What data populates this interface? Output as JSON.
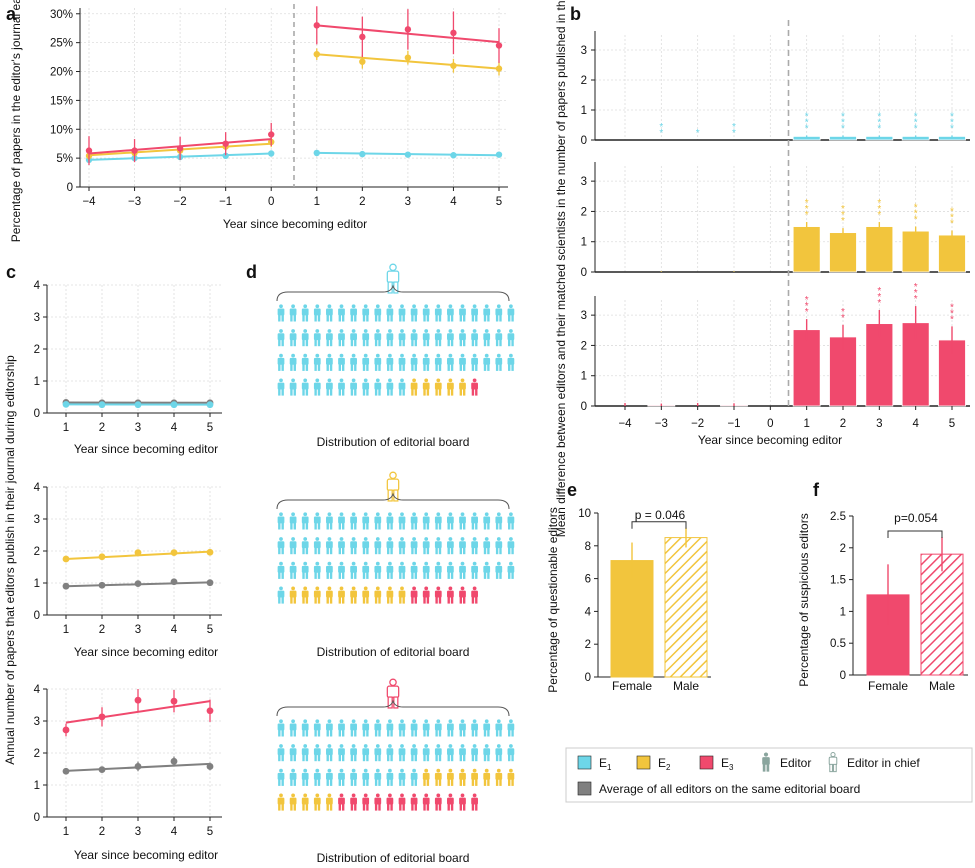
{
  "colors": {
    "E1": "#6dd6e8",
    "E2": "#f2c53d",
    "E3": "#f0496d",
    "avg": "#808080",
    "editor_icon": "#8aa59e"
  },
  "panel_labels": {
    "a": "a",
    "b": "b",
    "c": "c",
    "d": "d",
    "e": "e",
    "f": "f"
  },
  "chart_data": [
    {
      "id": "a",
      "type": "line",
      "ylabel": "Percentage of papers in the editor's journal each year",
      "xlabel": "Year since becoming editor",
      "x": [
        -4,
        -3,
        -2,
        -1,
        0,
        1,
        2,
        3,
        4,
        5
      ],
      "x_tick_labels": [
        "−4",
        "−3",
        "−2",
        "−1",
        "0",
        "1",
        "2",
        "3",
        "4",
        "5"
      ],
      "ylim": [
        0,
        31
      ],
      "y_ticks": [
        0,
        5,
        10,
        15,
        20,
        25,
        30
      ],
      "y_tick_labels": [
        "0",
        "5%",
        "10%",
        "15%",
        "20%",
        "25%",
        "30%"
      ],
      "series": [
        {
          "name": "E1",
          "values": [
            4.7,
            5.0,
            5.2,
            5.4,
            5.8,
            5.9,
            5.7,
            5.6,
            5.5,
            5.6
          ],
          "err": [
            0.4,
            0.4,
            0.4,
            0.4,
            0.4,
            0.4,
            0.4,
            0.4,
            0.4,
            0.4
          ],
          "fit_pre": [
            4.7,
            5.8
          ],
          "fit_post": [
            5.9,
            5.5
          ]
        },
        {
          "name": "E2",
          "values": [
            5.4,
            5.9,
            6.3,
            7.0,
            7.8,
            23.0,
            21.7,
            22.4,
            21.0,
            20.5
          ],
          "err": [
            0.8,
            0.8,
            0.8,
            0.8,
            0.9,
            1.0,
            1.2,
            1.2,
            1.2,
            1.2
          ],
          "fit_pre": [
            5.5,
            7.5
          ],
          "fit_post": [
            23.0,
            20.5
          ]
        },
        {
          "name": "E3",
          "values": [
            6.3,
            6.3,
            6.7,
            7.5,
            9.1,
            28.0,
            26.0,
            27.3,
            26.7,
            24.5
          ],
          "err": [
            2.5,
            2.0,
            2.0,
            2.0,
            2.0,
            3.3,
            3.5,
            3.5,
            3.7,
            3.0
          ],
          "fit_pre": [
            5.8,
            8.3
          ],
          "fit_post": [
            28.0,
            25.1
          ]
        }
      ],
      "vline_between": [
        0,
        1
      ]
    },
    {
      "id": "b",
      "type": "bar",
      "ylabel": "Mean difference between editors and their matched scientists in the number of papers published in the editor's journal",
      "xlabel": "Year since becoming editor",
      "x": [
        -4,
        -3,
        -2,
        -1,
        0,
        1,
        2,
        3,
        4,
        5
      ],
      "x_tick_labels": [
        "−4",
        "−3",
        "−2",
        "−1",
        "0",
        "1",
        "2",
        "3",
        "4",
        "5"
      ],
      "ylim": [
        0,
        3.5
      ],
      "y_ticks": [
        0,
        1,
        2,
        3
      ],
      "y_tick_labels": [
        "0",
        "1",
        "2",
        "3"
      ],
      "series": [
        {
          "name": "E1",
          "values": [
            0.0,
            0.0,
            0.0,
            0.0,
            0.0,
            0.12,
            0.12,
            0.12,
            0.12,
            0.12
          ],
          "err": [
            0.0,
            0.0,
            0.0,
            0.0,
            0.0,
            0.03,
            0.03,
            0.03,
            0.03,
            0.03
          ],
          "sig": [
            "",
            "**",
            "*",
            "**",
            "",
            "***",
            "***",
            "***",
            "***",
            "***"
          ]
        },
        {
          "name": "E2",
          "values": [
            0.0,
            0.0,
            0.0,
            0.0,
            0.0,
            1.5,
            1.3,
            1.5,
            1.35,
            1.22
          ],
          "err": [
            0.0,
            0.02,
            0.0,
            0.02,
            0.0,
            0.15,
            0.15,
            0.15,
            0.15,
            0.15
          ],
          "sig": [
            "",
            "",
            "",
            "",
            "",
            "***",
            "***",
            "***",
            "***",
            "***"
          ]
        },
        {
          "name": "E3",
          "values": [
            0.0,
            0.03,
            0.0,
            0.03,
            0.0,
            2.52,
            2.28,
            2.72,
            2.75,
            2.18
          ],
          "err": [
            0.1,
            0.05,
            0.1,
            0.06,
            0.0,
            0.35,
            0.4,
            0.45,
            0.55,
            0.45
          ],
          "sig": [
            "",
            "",
            "",
            "",
            "",
            "***",
            "**",
            "***",
            "***",
            "***"
          ]
        }
      ]
    },
    {
      "id": "c",
      "type": "line",
      "ylabel": "Annual number of papers that editors publish in their journal during editorship",
      "xlabel": "Year since becoming editor",
      "x": [
        1,
        2,
        3,
        4,
        5
      ],
      "x_tick_labels": [
        "1",
        "2",
        "3",
        "4",
        "5"
      ],
      "ylim": [
        0,
        4
      ],
      "y_ticks": [
        0,
        1,
        2,
        3,
        4
      ],
      "y_tick_labels": [
        "0",
        "1",
        "2",
        "3",
        "4"
      ],
      "subplots": [
        {
          "series": [
            {
              "name": "Average",
              "values": [
                0.33,
                0.32,
                0.32,
                0.32,
                0.32
              ],
              "err": [
                0.02,
                0.02,
                0.02,
                0.02,
                0.02
              ],
              "fit": [
                0.33,
                0.32
              ]
            },
            {
              "name": "E1",
              "values": [
                0.27,
                0.26,
                0.26,
                0.26,
                0.26
              ],
              "err": [
                0.02,
                0.02,
                0.02,
                0.02,
                0.02
              ],
              "fit": [
                0.27,
                0.26
              ]
            }
          ]
        },
        {
          "series": [
            {
              "name": "Average",
              "values": [
                0.9,
                0.93,
                0.98,
                1.04,
                1.01
              ],
              "err": [
                0.05,
                0.05,
                0.05,
                0.05,
                0.05
              ],
              "fit": [
                0.9,
                1.02
              ]
            },
            {
              "name": "E2",
              "values": [
                1.75,
                1.82,
                1.95,
                1.95,
                1.96
              ],
              "err": [
                0.08,
                0.08,
                0.08,
                0.08,
                0.08
              ],
              "fit": [
                1.75,
                1.98
              ]
            }
          ]
        },
        {
          "series": [
            {
              "name": "Average",
              "values": [
                1.43,
                1.48,
                1.58,
                1.74,
                1.58
              ],
              "err": [
                0.08,
                0.08,
                0.15,
                0.15,
                0.12
              ],
              "fit": [
                1.44,
                1.66
              ]
            },
            {
              "name": "E3",
              "values": [
                2.72,
                3.13,
                3.65,
                3.62,
                3.32
              ],
              "err": [
                0.2,
                0.3,
                0.35,
                0.35,
                0.35
              ],
              "fit": [
                2.95,
                3.62
              ]
            }
          ]
        }
      ]
    },
    {
      "id": "e",
      "type": "bar",
      "ylabel": "Percentage of questionable editors",
      "categories": [
        "Female",
        "Male"
      ],
      "values": [
        7.1,
        8.5
      ],
      "err": [
        1.1,
        0.6
      ],
      "ylim": [
        0,
        10
      ],
      "y_ticks": [
        0,
        2,
        4,
        6,
        8,
        10
      ],
      "y_tick_labels": [
        "0",
        "2",
        "4",
        "6",
        "8",
        "10"
      ],
      "annotation": "p = 0.046"
    },
    {
      "id": "f",
      "type": "bar",
      "ylabel": "Percentage of suspicious editors",
      "categories": [
        "Female",
        "Male"
      ],
      "values": [
        1.26,
        1.9
      ],
      "err": [
        0.48,
        0.27
      ],
      "ylim": [
        0,
        2.5
      ],
      "y_ticks": [
        0,
        0.5,
        1,
        1.5,
        2,
        2.5
      ],
      "y_tick_labels": [
        "0",
        "0.5",
        "1",
        "1.5",
        "2",
        "2.5"
      ],
      "annotation": "p=0.054"
    }
  ],
  "panel_d": {
    "caption": "Distribution of editorial board",
    "boards": [
      {
        "chief": "E1",
        "counts": {
          "E1": 71,
          "E2": 5,
          "E3": 1
        }
      },
      {
        "chief": "E2",
        "counts": {
          "E1": 61,
          "E2": 10,
          "E3": 6
        }
      },
      {
        "chief": "E3",
        "counts": {
          "E1": 52,
          "E2": 13,
          "E3": 12
        }
      }
    ]
  },
  "legend": {
    "e1": "E",
    "e1_sub": "1",
    "e2": "E",
    "e2_sub": "2",
    "e3": "E",
    "e3_sub": "3",
    "editor": "Editor",
    "editor_in_chief": "Editor in chief",
    "average": "Average of all editors on the same editorial board"
  }
}
